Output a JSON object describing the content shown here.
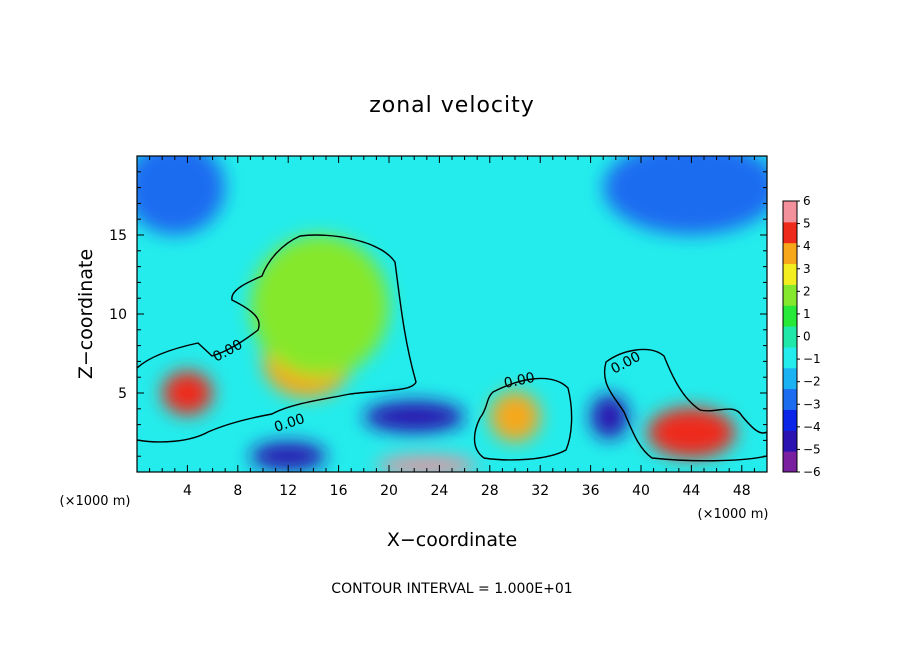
{
  "chart_data": {
    "type": "heatmap",
    "title": "zonal velocity",
    "xlabel": "X−coordinate",
    "ylabel": "Z−coordinate",
    "x_unit": "(×1000 m)",
    "y_unit": "(×1000 m)",
    "xlim": [
      0,
      50
    ],
    "ylim": [
      0,
      20
    ],
    "x_ticks": [
      "4",
      "8",
      "12",
      "16",
      "20",
      "24",
      "28",
      "32",
      "36",
      "40",
      "44",
      "48"
    ],
    "x_tick_values": [
      4,
      8,
      12,
      16,
      20,
      24,
      28,
      32,
      36,
      40,
      44,
      48
    ],
    "y_ticks": [
      "5",
      "10",
      "15"
    ],
    "y_tick_values": [
      5,
      10,
      15
    ],
    "colorbar": {
      "min": -6,
      "max": 6,
      "ticks": [
        "6",
        "5",
        "4",
        "3",
        "2",
        "1",
        "0",
        "−1",
        "−2",
        "−3",
        "−4",
        "−5",
        "−6"
      ],
      "colors": [
        "#7a1fa0",
        "#2a13b0",
        "#0a25e8",
        "#1c6cf0",
        "#1ab2f2",
        "#24ecec",
        "#20e8a8",
        "#28e838",
        "#86e82c",
        "#f2ee20",
        "#f6a81a",
        "#ee2a1a",
        "#f2909c"
      ]
    },
    "contour_level": 0.0,
    "contour_labels": [
      "0.00",
      "0.00",
      "0.00",
      "0.00"
    ],
    "background_value": -1.0,
    "features": [
      {
        "x": 4.0,
        "z": 5.0,
        "rx": 2.0,
        "rz": 1.4,
        "value": 4.5
      },
      {
        "x": 13.5,
        "z": 7.0,
        "rx": 3.5,
        "rz": 2.3,
        "value": 4.0
      },
      {
        "x": 14.5,
        "z": 10.5,
        "rx": 5.5,
        "rz": 4.5,
        "value": 1.5
      },
      {
        "x": 30.0,
        "z": 3.5,
        "rx": 2.0,
        "rz": 1.6,
        "value": 3.5
      },
      {
        "x": 44.0,
        "z": 2.5,
        "rx": 3.5,
        "rz": 1.6,
        "value": 4.5
      },
      {
        "x": 22.0,
        "z": 3.5,
        "rx": 4.0,
        "rz": 1.0,
        "value": -4.5
      },
      {
        "x": 37.5,
        "z": 3.5,
        "rx": 1.5,
        "rz": 1.4,
        "value": -4.5
      },
      {
        "x": 12.0,
        "z": 1.0,
        "rx": 3.0,
        "rz": 0.9,
        "value": -5.0
      },
      {
        "x": 44.0,
        "z": 18.0,
        "rx": 7.0,
        "rz": 3.0,
        "value": -3.0
      },
      {
        "x": 3.0,
        "z": 18.0,
        "rx": 4.0,
        "rz": 3.0,
        "value": -2.5
      },
      {
        "x": 23.0,
        "z": 0.4,
        "rx": 4.0,
        "rz": 0.6,
        "value": 6.0
      }
    ],
    "footer_note": "CONTOUR INTERVAL = 1.000E+01"
  }
}
